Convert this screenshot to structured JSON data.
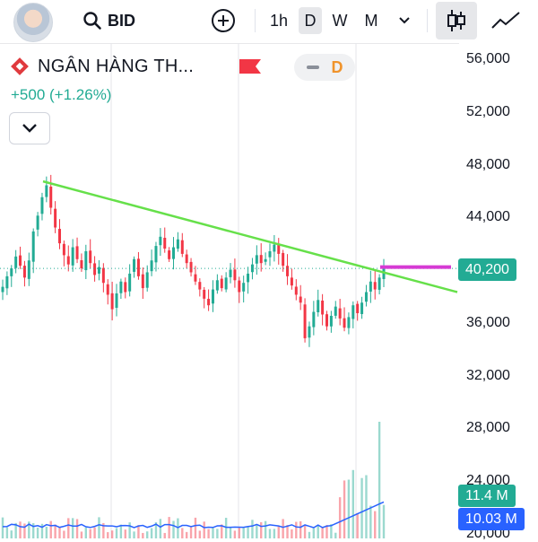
{
  "header": {
    "symbol": "BID",
    "intervals": [
      "1h",
      "D",
      "W",
      "M"
    ],
    "active_interval": "D"
  },
  "legend": {
    "name": "NGÂN HÀNG TH...",
    "change": "+500 (+1.26%)",
    "interval_badge": "D"
  },
  "price_axis": {
    "ticks": [
      "56,000",
      "52,000",
      "48,000",
      "44,000",
      "40,000",
      "36,000",
      "32,000",
      "28,000",
      "24,000",
      "20,000"
    ],
    "tick_values": [
      56000,
      52000,
      48000,
      44000,
      40000,
      36000,
      32000,
      28000,
      24000,
      20000
    ],
    "last_price_label": "40,200",
    "volume_label": "11.4 M",
    "volume_ma_label": "10.03 M"
  },
  "colors": {
    "up": "#22ab94",
    "down": "#f23645",
    "trendline": "#66e04a",
    "horizontal_ray": "#d63ad4",
    "volume_ma": "#2962ff",
    "last_price_badge": "#22ab94",
    "volume_ma_badge": "#2962ff"
  },
  "chart_data": {
    "type": "candlestick",
    "symbol": "BID",
    "interval": "D",
    "last_price": 40200,
    "ylim": [
      20000,
      58000
    ],
    "trendline": {
      "from_price": 46800,
      "to_price": 38400
    },
    "horizontal_ray_price": 40300,
    "closes": [
      38800,
      39600,
      40200,
      41100,
      40400,
      39500,
      40800,
      43000,
      44200,
      45600,
      46500,
      44800,
      43300,
      42100,
      41200,
      40500,
      41800,
      40900,
      40200,
      41500,
      40600,
      39700,
      40300,
      39100,
      38200,
      37100,
      38300,
      39200,
      38400,
      39800,
      40900,
      39600,
      38700,
      39900,
      40800,
      41900,
      42600,
      41700,
      40900,
      41800,
      42400,
      41300,
      40600,
      39900,
      39200,
      38600,
      37900,
      37400,
      38600,
      39300,
      38700,
      39500,
      40100,
      39300,
      38400,
      39100,
      39800,
      40500,
      41200,
      40600,
      40900,
      41500,
      42000,
      41300,
      40400,
      39600,
      38900,
      38200,
      37600,
      34900,
      35800,
      36900,
      37800,
      36700,
      35800,
      36600,
      37300,
      36400,
      35700,
      36500,
      37400,
      36800,
      37600,
      38400,
      39200,
      38600,
      39500,
      40200
    ]
  }
}
